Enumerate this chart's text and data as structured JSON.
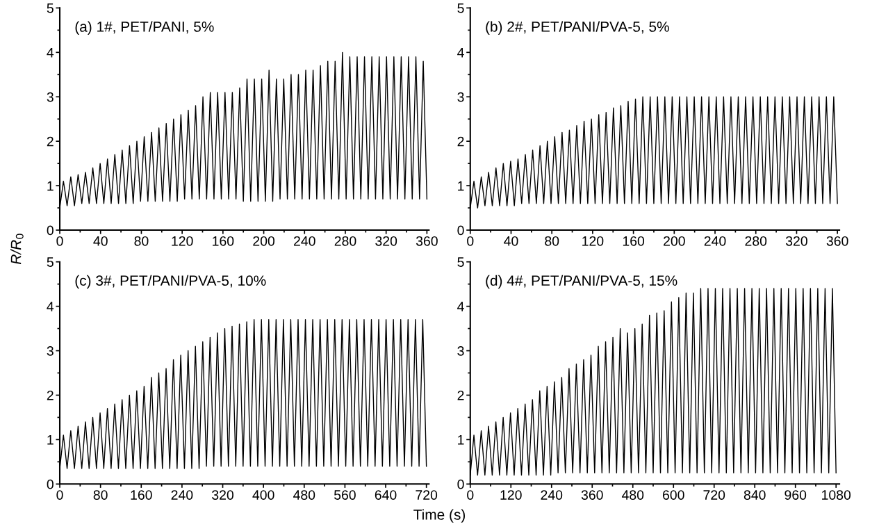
{
  "chart_data": [
    {
      "type": "line",
      "title": "(a) 1#, PET/PANI, 5%",
      "ylabel": "R/R$_{0}$",
      "grid": false,
      "marker": "none",
      "line_style": "solid",
      "xlim": [
        0,
        362
      ],
      "ylim": [
        0,
        5
      ],
      "xticks": [
        0,
        {
          "value": 20,
          "label": null
        },
        40,
        {
          "value": 60,
          "label": null
        },
        80,
        {
          "value": 100,
          "label": null
        },
        120,
        {
          "value": 140,
          "label": null
        },
        160,
        {
          "value": 180,
          "label": null
        },
        200,
        {
          "value": 220,
          "label": null
        },
        240,
        {
          "value": 260,
          "label": null
        },
        280,
        {
          "value": 300,
          "label": null
        },
        320,
        {
          "value": 340,
          "label": null
        },
        360
      ],
      "yticks": [
        0,
        {
          "value": 0.5,
          "label": null
        },
        1,
        {
          "value": 1.5,
          "label": null
        },
        2,
        {
          "value": 2.5,
          "label": null
        },
        3,
        {
          "value": 3.5,
          "label": null
        },
        4,
        {
          "value": 4.5,
          "label": null
        },
        5
      ],
      "series": [
        {
          "color": "#000000",
          "x": [
            0,
            3.6,
            7.2,
            10.8,
            14.4,
            18,
            21.6,
            25.2,
            28.8,
            32.4,
            36,
            39.6,
            43.2,
            46.8,
            50.4,
            54,
            57.6,
            61.2,
            64.8,
            68.4,
            72,
            75.6,
            79.2,
            82.8,
            86.4,
            90,
            93.6,
            97.2,
            100.8,
            104.4,
            108,
            111.6,
            115.2,
            118.8,
            122.4,
            126,
            129.6,
            133.2,
            136.8,
            140.4,
            144,
            147.6,
            151.2,
            154.8,
            158.4,
            162,
            165.6,
            169.2,
            172.8,
            176.4,
            180,
            183.6,
            187.2,
            190.8,
            194.4,
            198,
            201.6,
            205.2,
            208.8,
            212.4,
            216,
            219.6,
            223.2,
            226.8,
            230.4,
            234,
            237.6,
            241.2,
            244.8,
            248.4,
            252,
            255.6,
            259.2,
            262.8,
            266.4,
            270,
            273.6,
            277.2,
            280.8,
            284.4,
            288,
            291.6,
            295.2,
            298.8,
            302.4,
            306,
            309.6,
            313.2,
            316.8,
            320.4,
            324,
            327.6,
            331.2,
            334.8,
            338.4,
            342,
            345.6,
            349.2,
            352.8,
            356.4,
            360
          ],
          "values": [
            0.5,
            1.1,
            0.55,
            1.2,
            0.55,
            1.25,
            0.6,
            1.3,
            0.6,
            1.4,
            0.6,
            1.5,
            0.6,
            1.6,
            0.6,
            1.7,
            0.6,
            1.8,
            0.6,
            1.9,
            0.6,
            2.0,
            0.65,
            2.1,
            0.65,
            2.2,
            0.65,
            2.3,
            0.65,
            2.4,
            0.65,
            2.5,
            0.65,
            2.6,
            0.7,
            2.7,
            0.7,
            2.8,
            0.7,
            3.0,
            0.7,
            3.1,
            0.7,
            3.1,
            0.7,
            3.1,
            0.7,
            3.1,
            0.7,
            3.2,
            0.65,
            3.4,
            0.65,
            3.4,
            0.65,
            3.4,
            0.65,
            3.6,
            0.65,
            3.4,
            0.7,
            3.4,
            0.7,
            3.5,
            0.7,
            3.5,
            0.7,
            3.6,
            0.7,
            3.6,
            0.7,
            3.7,
            0.7,
            3.8,
            0.7,
            3.8,
            0.7,
            4.0,
            0.7,
            3.9,
            0.7,
            3.9,
            0.7,
            3.9,
            0.7,
            3.9,
            0.7,
            3.9,
            0.7,
            3.9,
            0.7,
            3.9,
            0.7,
            3.9,
            0.7,
            3.9,
            0.7,
            3.9,
            0.7,
            3.8,
            0.7
          ]
        }
      ]
    },
    {
      "type": "line",
      "title": "(b) 2#, PET/PANI/PVA-5, 5%",
      "grid": false,
      "marker": "none",
      "line_style": "solid",
      "xlim": [
        0,
        362
      ],
      "ylim": [
        0,
        5
      ],
      "xticks": [
        0,
        {
          "value": 20,
          "label": null
        },
        40,
        {
          "value": 60,
          "label": null
        },
        80,
        {
          "value": 100,
          "label": null
        },
        120,
        {
          "value": 140,
          "label": null
        },
        160,
        {
          "value": 180,
          "label": null
        },
        200,
        {
          "value": 220,
          "label": null
        },
        240,
        {
          "value": 260,
          "label": null
        },
        280,
        {
          "value": 300,
          "label": null
        },
        320,
        {
          "value": 340,
          "label": null
        },
        360
      ],
      "yticks": [
        0,
        {
          "value": 0.5,
          "label": null
        },
        1,
        {
          "value": 1.5,
          "label": null
        },
        2,
        {
          "value": 2.5,
          "label": null
        },
        3,
        {
          "value": 3.5,
          "label": null
        },
        4,
        {
          "value": 4.5,
          "label": null
        },
        5
      ],
      "series": [
        {
          "color": "#000000",
          "x": [
            0,
            3.6,
            7.2,
            10.8,
            14.4,
            18,
            21.6,
            25.2,
            28.8,
            32.4,
            36,
            39.6,
            43.2,
            46.8,
            50.4,
            54,
            57.6,
            61.2,
            64.8,
            68.4,
            72,
            75.6,
            79.2,
            82.8,
            86.4,
            90,
            93.6,
            97.2,
            100.8,
            104.4,
            108,
            111.6,
            115.2,
            118.8,
            122.4,
            126,
            129.6,
            133.2,
            136.8,
            140.4,
            144,
            147.6,
            151.2,
            154.8,
            158.4,
            162,
            165.6,
            169.2,
            172.8,
            176.4,
            180,
            183.6,
            187.2,
            190.8,
            194.4,
            198,
            201.6,
            205.2,
            208.8,
            212.4,
            216,
            219.6,
            223.2,
            226.8,
            230.4,
            234,
            237.6,
            241.2,
            244.8,
            248.4,
            252,
            255.6,
            259.2,
            262.8,
            266.4,
            270,
            273.6,
            277.2,
            280.8,
            284.4,
            288,
            291.6,
            295.2,
            298.8,
            302.4,
            306,
            309.6,
            313.2,
            316.8,
            320.4,
            324,
            327.6,
            331.2,
            334.8,
            338.4,
            342,
            345.6,
            349.2,
            352.8,
            356.4,
            360
          ],
          "values": [
            0.5,
            1.1,
            0.5,
            1.2,
            0.55,
            1.3,
            0.55,
            1.4,
            0.55,
            1.5,
            0.55,
            1.55,
            0.55,
            1.6,
            0.6,
            1.7,
            0.6,
            1.8,
            0.6,
            1.9,
            0.6,
            2.0,
            0.6,
            2.1,
            0.6,
            2.2,
            0.6,
            2.25,
            0.6,
            2.35,
            0.6,
            2.45,
            0.6,
            2.5,
            0.6,
            2.6,
            0.6,
            2.65,
            0.6,
            2.75,
            0.6,
            2.8,
            0.6,
            2.9,
            0.6,
            2.95,
            0.6,
            3.0,
            0.6,
            3.0,
            0.6,
            3.0,
            0.6,
            3.0,
            0.6,
            3.0,
            0.6,
            3.0,
            0.6,
            3.0,
            0.6,
            3.0,
            0.6,
            3.0,
            0.6,
            3.0,
            0.6,
            3.0,
            0.6,
            3.0,
            0.6,
            3.0,
            0.6,
            3.0,
            0.6,
            3.0,
            0.6,
            3.0,
            0.6,
            3.0,
            0.6,
            3.0,
            0.6,
            3.0,
            0.6,
            3.0,
            0.6,
            3.0,
            0.6,
            3.0,
            0.6,
            3.0,
            0.6,
            3.0,
            0.6,
            3.0,
            0.6,
            3.0,
            0.6,
            3.0,
            0.6
          ]
        }
      ]
    },
    {
      "type": "line",
      "title": "(c) 3#, PET/PANI/PVA-5, 10%",
      "xlabel": "Time (s)",
      "grid": false,
      "marker": "none",
      "line_style": "solid",
      "xlim": [
        0,
        725
      ],
      "ylim": [
        0,
        5
      ],
      "xticks": [
        0,
        {
          "value": 40,
          "label": null
        },
        80,
        {
          "value": 120,
          "label": null
        },
        160,
        {
          "value": 200,
          "label": null
        },
        240,
        {
          "value": 280,
          "label": null
        },
        320,
        {
          "value": 360,
          "label": null
        },
        400,
        {
          "value": 440,
          "label": null
        },
        480,
        {
          "value": 520,
          "label": null
        },
        560,
        {
          "value": 600,
          "label": null
        },
        640,
        {
          "value": 680,
          "label": null
        },
        720
      ],
      "yticks": [
        0,
        {
          "value": 0.5,
          "label": null
        },
        1,
        {
          "value": 1.5,
          "label": null
        },
        2,
        {
          "value": 2.5,
          "label": null
        },
        3,
        {
          "value": 3.5,
          "label": null
        },
        4,
        {
          "value": 4.5,
          "label": null
        },
        5
      ],
      "series": [
        {
          "color": "#000000",
          "x": [
            0,
            7.2,
            14.4,
            21.6,
            28.8,
            36,
            43.2,
            50.4,
            57.6,
            64.8,
            72,
            79.2,
            86.4,
            93.6,
            100.8,
            108,
            115.2,
            122.4,
            129.6,
            136.8,
            144,
            151.2,
            158.4,
            165.6,
            172.8,
            180,
            187.2,
            194.4,
            201.6,
            208.8,
            216,
            223.2,
            230.4,
            237.6,
            244.8,
            252,
            259.2,
            266.4,
            273.6,
            280.8,
            288,
            295.2,
            302.4,
            309.6,
            316.8,
            324,
            331.2,
            338.4,
            345.6,
            352.8,
            360,
            367.2,
            374.4,
            381.6,
            388.8,
            396,
            403.2,
            410.4,
            417.6,
            424.8,
            432,
            439.2,
            446.4,
            453.6,
            460.8,
            468,
            475.2,
            482.4,
            489.6,
            496.8,
            504,
            511.2,
            518.4,
            525.6,
            532.8,
            540,
            547.2,
            554.4,
            561.6,
            568.8,
            576,
            583.2,
            590.4,
            597.6,
            604.8,
            612,
            619.2,
            626.4,
            633.6,
            640.8,
            648,
            655.2,
            662.4,
            669.6,
            676.8,
            684,
            691.2,
            698.4,
            705.6,
            712.8,
            720
          ],
          "values": [
            0.35,
            1.1,
            0.35,
            1.2,
            0.35,
            1.3,
            0.35,
            1.4,
            0.35,
            1.5,
            0.35,
            1.6,
            0.35,
            1.7,
            0.35,
            1.8,
            0.35,
            1.9,
            0.35,
            2.0,
            0.35,
            2.1,
            0.35,
            2.2,
            0.35,
            2.4,
            0.35,
            2.5,
            0.35,
            2.6,
            0.35,
            2.8,
            0.35,
            2.9,
            0.35,
            3.0,
            0.35,
            3.1,
            0.35,
            3.2,
            0.4,
            3.3,
            0.4,
            3.4,
            0.4,
            3.5,
            0.4,
            3.55,
            0.4,
            3.6,
            0.4,
            3.65,
            0.4,
            3.7,
            0.4,
            3.7,
            0.4,
            3.7,
            0.4,
            3.7,
            0.4,
            3.7,
            0.4,
            3.7,
            0.4,
            3.7,
            0.4,
            3.7,
            0.4,
            3.7,
            0.4,
            3.7,
            0.4,
            3.7,
            0.4,
            3.7,
            0.4,
            3.7,
            0.4,
            3.7,
            0.4,
            3.7,
            0.4,
            3.7,
            0.4,
            3.7,
            0.4,
            3.7,
            0.4,
            3.7,
            0.4,
            3.7,
            0.4,
            3.7,
            0.4,
            3.7,
            0.4,
            3.7,
            0.4,
            3.7,
            0.4
          ]
        }
      ]
    },
    {
      "type": "line",
      "title": "(d) 4#, PET/PANI/PVA-5, 15%",
      "grid": false,
      "marker": "none",
      "line_style": "solid",
      "xlim": [
        0,
        1090
      ],
      "ylim": [
        0,
        5
      ],
      "xticks": [
        0,
        {
          "value": 60,
          "label": null
        },
        120,
        {
          "value": 180,
          "label": null
        },
        240,
        {
          "value": 300,
          "label": null
        },
        360,
        {
          "value": 420,
          "label": null
        },
        480,
        {
          "value": 540,
          "label": null
        },
        600,
        {
          "value": 660,
          "label": null
        },
        720,
        {
          "value": 780,
          "label": null
        },
        840,
        {
          "value": 900,
          "label": null
        },
        960,
        {
          "value": 1020,
          "label": null
        },
        1080
      ],
      "yticks": [
        0,
        {
          "value": 0.5,
          "label": null
        },
        1,
        {
          "value": 1.5,
          "label": null
        },
        2,
        {
          "value": 2.5,
          "label": null
        },
        3,
        {
          "value": 3.5,
          "label": null
        },
        4,
        {
          "value": 4.5,
          "label": null
        },
        5
      ],
      "series": [
        {
          "color": "#000000",
          "x": [
            0,
            10.8,
            21.6,
            32.4,
            43.2,
            54,
            64.8,
            75.6,
            86.4,
            97.2,
            108,
            118.8,
            129.6,
            140.4,
            151.2,
            162,
            172.8,
            183.6,
            194.4,
            205.2,
            216,
            226.8,
            237.6,
            248.4,
            259.2,
            270,
            280.8,
            291.6,
            302.4,
            313.2,
            324,
            334.8,
            345.6,
            356.4,
            367.2,
            378,
            388.8,
            399.6,
            410.4,
            421.2,
            432,
            442.8,
            453.6,
            464.4,
            475.2,
            486,
            496.8,
            507.6,
            518.4,
            529.2,
            540,
            550.8,
            561.6,
            572.4,
            583.2,
            594,
            604.8,
            615.6,
            626.4,
            637.2,
            648,
            658.8,
            669.6,
            680.4,
            691.2,
            702,
            712.8,
            723.6,
            734.4,
            745.2,
            756,
            766.8,
            777.6,
            788.4,
            799.2,
            810,
            820.8,
            831.6,
            842.4,
            853.2,
            864,
            874.8,
            885.6,
            896.4,
            907.2,
            918,
            928.8,
            939.6,
            950.4,
            961.2,
            972,
            982.8,
            993.6,
            1004.4,
            1015.2,
            1026,
            1036.8,
            1047.6,
            1058.4,
            1069.2,
            1080
          ],
          "values": [
            0.2,
            1.1,
            0.2,
            1.2,
            0.2,
            1.3,
            0.2,
            1.4,
            0.2,
            1.5,
            0.2,
            1.6,
            0.2,
            1.7,
            0.2,
            1.8,
            0.2,
            1.9,
            0.2,
            2.1,
            0.2,
            2.2,
            0.2,
            2.3,
            0.25,
            2.4,
            0.25,
            2.6,
            0.25,
            2.7,
            0.25,
            2.8,
            0.25,
            2.9,
            0.25,
            3.1,
            0.25,
            3.2,
            0.25,
            3.3,
            0.25,
            3.5,
            0.25,
            3.4,
            0.25,
            3.5,
            0.25,
            3.6,
            0.25,
            3.8,
            0.25,
            3.85,
            0.25,
            3.9,
            0.25,
            4.1,
            0.25,
            4.2,
            0.25,
            4.3,
            0.25,
            4.3,
            0.25,
            4.4,
            0.25,
            4.4,
            0.25,
            4.4,
            0.25,
            4.4,
            0.25,
            4.4,
            0.25,
            4.4,
            0.25,
            4.4,
            0.25,
            4.4,
            0.25,
            4.4,
            0.25,
            4.4,
            0.25,
            4.4,
            0.25,
            4.4,
            0.25,
            4.4,
            0.25,
            4.4,
            0.25,
            4.4,
            0.25,
            4.4,
            0.25,
            4.4,
            0.25,
            4.4,
            0.25,
            4.4,
            0.25
          ]
        }
      ]
    }
  ]
}
